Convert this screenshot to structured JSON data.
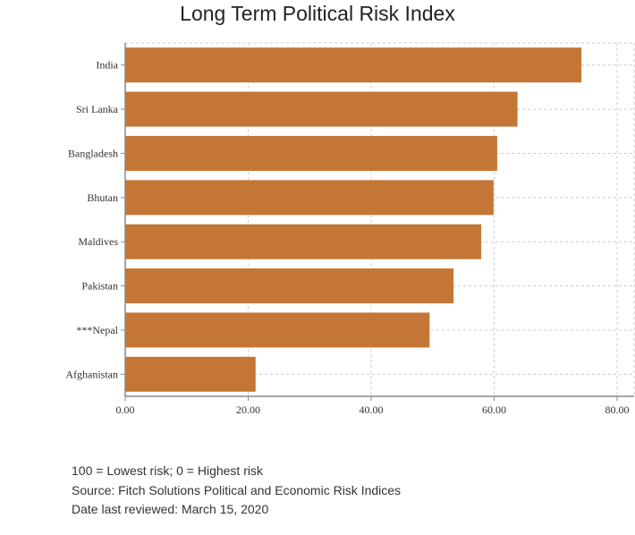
{
  "chart_data": {
    "type": "bar",
    "orientation": "horizontal",
    "title": "Long Term Political Risk Index",
    "categories": [
      "India",
      "Sri Lanka",
      "Bangladesh",
      "Bhutan",
      "Maldives",
      "Pakistan",
      "***Nepal",
      "Afghanistan"
    ],
    "values": [
      74.2,
      63.8,
      60.5,
      59.9,
      57.9,
      53.4,
      49.5,
      21.2
    ],
    "xlim": [
      0,
      80
    ],
    "xticks": [
      0,
      20,
      40,
      60,
      80
    ],
    "xtick_labels": [
      "0.00",
      "20.00",
      "40.00",
      "60.00",
      "80.00"
    ],
    "grid": true,
    "bar_color": "#c47636"
  },
  "notes": [
    "100 = Lowest risk; 0 = Highest risk",
    "Source: Fitch Solutions Political and Economic Risk Indices",
    "Date last reviewed: March 15, 2020"
  ]
}
